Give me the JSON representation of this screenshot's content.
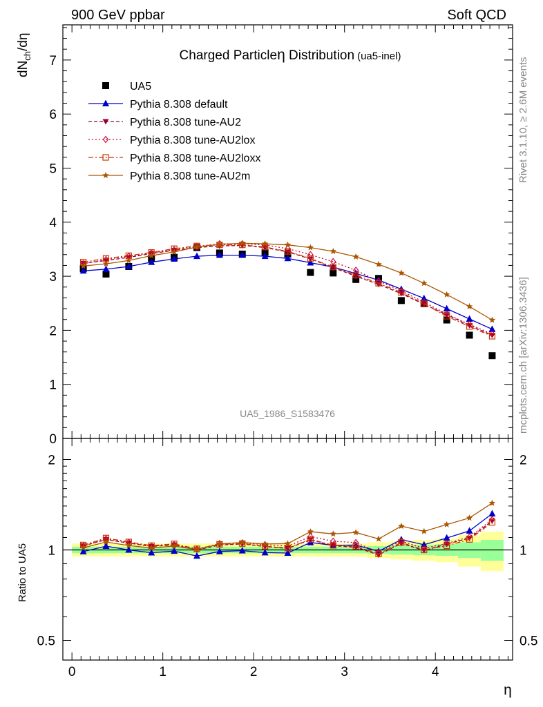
{
  "header": {
    "left": "900 GeV ppbar",
    "right": "Soft QCD"
  },
  "side_labels": {
    "rivet": "Rivet 3.1.10, ≥ 2.6M events",
    "mcplots": "mcplots.cern.ch [arXiv:1306.3436]"
  },
  "chart_data": {
    "type": "scatter",
    "title": "Charged Particle",
    "title_symbol": "η",
    "title_rest": " Distribution",
    "title_tag": "(ua5-inel)",
    "analysis_tag": "UA5_1986_S1583476",
    "xlabel": "η",
    "ylabel_main": "dN",
    "ylabel_sub1": "ch",
    "ylabel_mid": "/d",
    "ylabel_eta": "η",
    "ylabel_ratio": "Ratio to UA5",
    "xlim": [
      -0.1,
      4.85
    ],
    "ylim_main": [
      0,
      7.65
    ],
    "ylim_ratio": [
      0.43,
      2.35
    ],
    "ratio_log_scale": true,
    "x_ticks": [
      "0",
      "1",
      "2",
      "3",
      "4"
    ],
    "y_ticks_main": [
      "0",
      "1",
      "2",
      "3",
      "4",
      "5",
      "6",
      "7"
    ],
    "y_ticks_ratio": [
      "0.5",
      "1",
      "2"
    ],
    "x": [
      0.125,
      0.375,
      0.625,
      0.875,
      1.125,
      1.375,
      1.625,
      1.875,
      2.125,
      2.375,
      2.625,
      2.875,
      3.125,
      3.375,
      3.625,
      3.875,
      4.125,
      4.375,
      4.625
    ],
    "band_green_rel": [
      0.025,
      0.025,
      0.025,
      0.025,
      0.025,
      0.025,
      0.025,
      0.025,
      0.025,
      0.025,
      0.025,
      0.025,
      0.025,
      0.03,
      0.035,
      0.04,
      0.045,
      0.06,
      0.08
    ],
    "band_yellow_rel": [
      0.05,
      0.05,
      0.05,
      0.05,
      0.05,
      0.05,
      0.05,
      0.05,
      0.05,
      0.05,
      0.05,
      0.05,
      0.05,
      0.06,
      0.07,
      0.08,
      0.09,
      0.12,
      0.15
    ],
    "series": [
      {
        "name": "UA5",
        "marker": "square",
        "color": "#000000",
        "dash": "none",
        "values": [
          3.14,
          3.04,
          3.18,
          3.33,
          3.35,
          3.53,
          3.43,
          3.41,
          3.44,
          3.41,
          3.07,
          3.06,
          2.94,
          2.96,
          2.55,
          2.49,
          2.19,
          1.91,
          1.53
        ]
      },
      {
        "name": "Pythia 8.308 default",
        "marker": "triangle",
        "color": "#0000cc",
        "dash": "none",
        "values": [
          3.1,
          3.13,
          3.18,
          3.26,
          3.32,
          3.37,
          3.39,
          3.39,
          3.37,
          3.33,
          3.25,
          3.17,
          3.05,
          2.93,
          2.76,
          2.59,
          2.4,
          2.21,
          2.02
        ]
      },
      {
        "name": "Pythia 8.308 tune-AU2",
        "marker": "triangle-down",
        "color": "#990033",
        "dash": "5,3",
        "values": [
          3.24,
          3.29,
          3.35,
          3.42,
          3.48,
          3.53,
          3.56,
          3.57,
          3.53,
          3.45,
          3.32,
          3.16,
          3.0,
          2.85,
          2.68,
          2.48,
          2.29,
          2.09,
          1.91
        ]
      },
      {
        "name": "Pythia 8.308 tune-AU2lox",
        "marker": "diamond",
        "color": "#cc0033",
        "dash": "2,3",
        "values": [
          3.23,
          3.31,
          3.37,
          3.43,
          3.49,
          3.55,
          3.6,
          3.6,
          3.58,
          3.51,
          3.4,
          3.27,
          3.11,
          2.91,
          2.73,
          2.52,
          2.3,
          2.11,
          1.93
        ]
      },
      {
        "name": "Pythia 8.308 tune-AU2loxx",
        "marker": "square-open",
        "color": "#cc3300",
        "dash": "7,3,2,3",
        "values": [
          3.26,
          3.33,
          3.38,
          3.44,
          3.51,
          3.56,
          3.58,
          3.58,
          3.54,
          3.46,
          3.33,
          3.17,
          3.02,
          2.87,
          2.7,
          2.49,
          2.26,
          2.07,
          1.89
        ]
      },
      {
        "name": "Pythia 8.308 tune-AU2m",
        "marker": "star",
        "color": "#aa5500",
        "dash": "none",
        "values": [
          3.19,
          3.23,
          3.29,
          3.38,
          3.45,
          3.54,
          3.59,
          3.61,
          3.6,
          3.58,
          3.53,
          3.46,
          3.36,
          3.22,
          3.06,
          2.87,
          2.66,
          2.44,
          2.19
        ]
      }
    ]
  }
}
